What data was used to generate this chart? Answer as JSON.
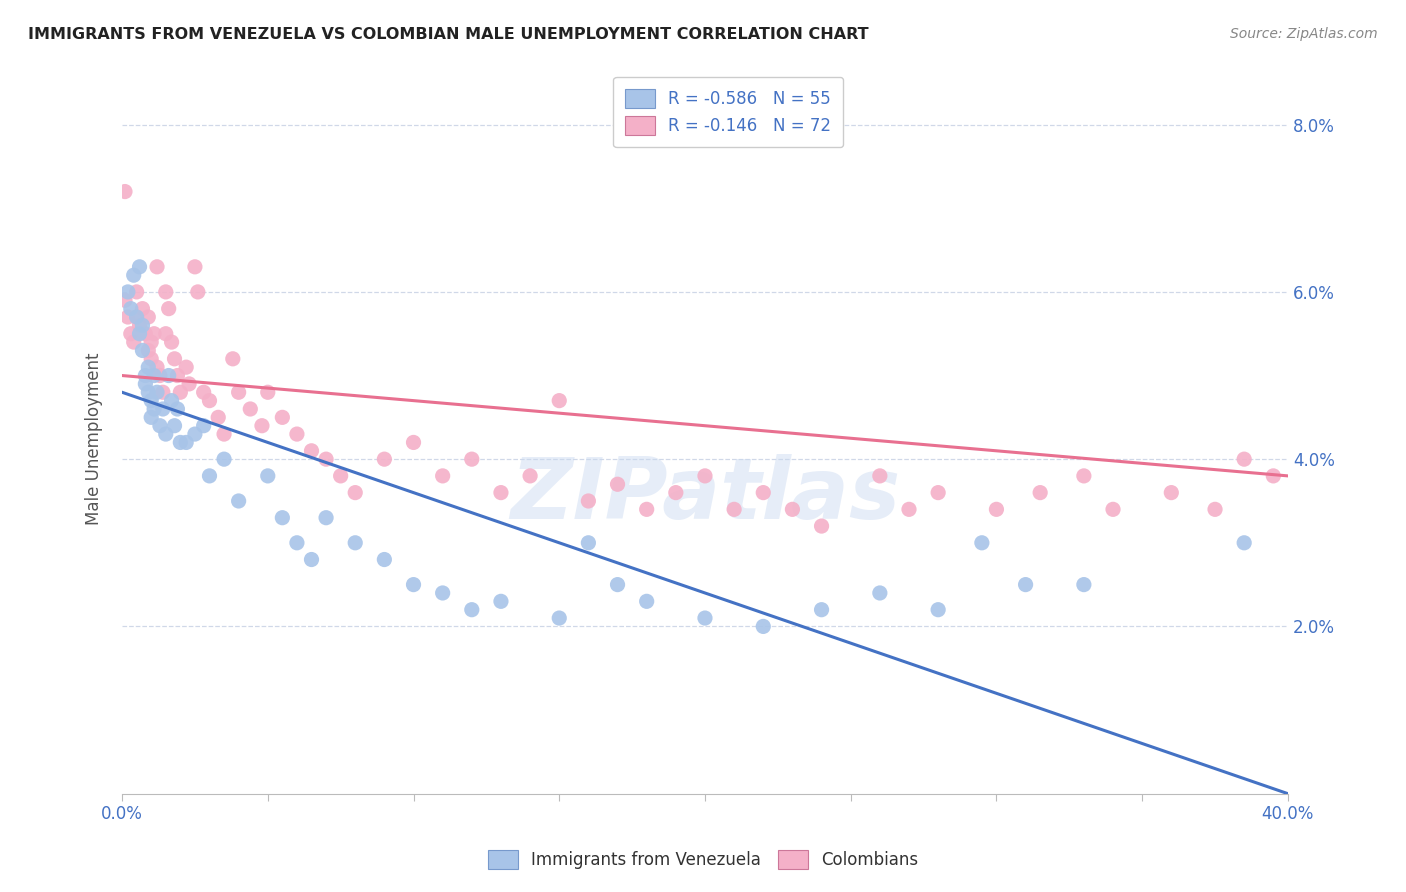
{
  "title": "IMMIGRANTS FROM VENEZUELA VS COLOMBIAN MALE UNEMPLOYMENT CORRELATION CHART",
  "source": "Source: ZipAtlas.com",
  "ylabel": "Male Unemployment",
  "watermark": "ZIPatlas",
  "legend_labels": [
    "Immigrants from Venezuela",
    "Colombians"
  ],
  "xlim": [
    0.0,
    0.4
  ],
  "ylim": [
    0.0,
    0.085
  ],
  "ytick_positions": [
    0.0,
    0.02,
    0.04,
    0.06,
    0.08
  ],
  "ytick_labels": [
    "",
    "2.0%",
    "4.0%",
    "6.0%",
    "8.0%"
  ],
  "xtick_positions": [
    0.0,
    0.05,
    0.1,
    0.15,
    0.2,
    0.25,
    0.3,
    0.35,
    0.4
  ],
  "xtick_labels": [
    "0.0%",
    "",
    "",
    "",
    "",
    "",
    "",
    "",
    "40.0%"
  ],
  "background_color": "#ffffff",
  "grid_color": "#d0d8e8",
  "axis_color": "#4472c4",
  "title_color": "#222222",
  "blue_color": "#a8c4e8",
  "pink_color": "#f4b0c8",
  "blue_line_color": "#4472c4",
  "pink_line_color": "#e87090",
  "blue_line_x": [
    0.0,
    0.4
  ],
  "blue_line_y": [
    0.048,
    0.0
  ],
  "pink_line_x": [
    0.0,
    0.4
  ],
  "pink_line_y": [
    0.05,
    0.038
  ],
  "blue_x": [
    0.002,
    0.003,
    0.004,
    0.005,
    0.006,
    0.006,
    0.007,
    0.007,
    0.008,
    0.008,
    0.009,
    0.009,
    0.01,
    0.01,
    0.011,
    0.011,
    0.012,
    0.013,
    0.014,
    0.015,
    0.016,
    0.017,
    0.018,
    0.019,
    0.02,
    0.022,
    0.025,
    0.028,
    0.03,
    0.035,
    0.04,
    0.05,
    0.055,
    0.06,
    0.065,
    0.07,
    0.08,
    0.09,
    0.1,
    0.11,
    0.12,
    0.13,
    0.15,
    0.16,
    0.17,
    0.18,
    0.2,
    0.22,
    0.24,
    0.26,
    0.28,
    0.295,
    0.31,
    0.33,
    0.385
  ],
  "blue_y": [
    0.06,
    0.058,
    0.062,
    0.057,
    0.055,
    0.063,
    0.056,
    0.053,
    0.05,
    0.049,
    0.051,
    0.048,
    0.047,
    0.045,
    0.05,
    0.046,
    0.048,
    0.044,
    0.046,
    0.043,
    0.05,
    0.047,
    0.044,
    0.046,
    0.042,
    0.042,
    0.043,
    0.044,
    0.038,
    0.04,
    0.035,
    0.038,
    0.033,
    0.03,
    0.028,
    0.033,
    0.03,
    0.028,
    0.025,
    0.024,
    0.022,
    0.023,
    0.021,
    0.03,
    0.025,
    0.023,
    0.021,
    0.02,
    0.022,
    0.024,
    0.022,
    0.03,
    0.025,
    0.025,
    0.03
  ],
  "pink_x": [
    0.001,
    0.001,
    0.002,
    0.003,
    0.004,
    0.005,
    0.005,
    0.006,
    0.007,
    0.008,
    0.009,
    0.009,
    0.01,
    0.01,
    0.011,
    0.012,
    0.012,
    0.013,
    0.014,
    0.015,
    0.015,
    0.016,
    0.017,
    0.018,
    0.019,
    0.02,
    0.022,
    0.023,
    0.025,
    0.026,
    0.028,
    0.03,
    0.033,
    0.035,
    0.038,
    0.04,
    0.044,
    0.048,
    0.05,
    0.055,
    0.06,
    0.065,
    0.07,
    0.075,
    0.08,
    0.09,
    0.1,
    0.11,
    0.12,
    0.13,
    0.14,
    0.15,
    0.16,
    0.17,
    0.18,
    0.19,
    0.2,
    0.21,
    0.22,
    0.23,
    0.24,
    0.26,
    0.27,
    0.28,
    0.3,
    0.315,
    0.33,
    0.34,
    0.36,
    0.375,
    0.385,
    0.395
  ],
  "pink_y": [
    0.072,
    0.059,
    0.057,
    0.055,
    0.054,
    0.057,
    0.06,
    0.056,
    0.058,
    0.055,
    0.057,
    0.053,
    0.054,
    0.052,
    0.055,
    0.051,
    0.063,
    0.05,
    0.048,
    0.055,
    0.06,
    0.058,
    0.054,
    0.052,
    0.05,
    0.048,
    0.051,
    0.049,
    0.063,
    0.06,
    0.048,
    0.047,
    0.045,
    0.043,
    0.052,
    0.048,
    0.046,
    0.044,
    0.048,
    0.045,
    0.043,
    0.041,
    0.04,
    0.038,
    0.036,
    0.04,
    0.042,
    0.038,
    0.04,
    0.036,
    0.038,
    0.047,
    0.035,
    0.037,
    0.034,
    0.036,
    0.038,
    0.034,
    0.036,
    0.034,
    0.032,
    0.038,
    0.034,
    0.036,
    0.034,
    0.036,
    0.038,
    0.034,
    0.036,
    0.034,
    0.04,
    0.038
  ]
}
